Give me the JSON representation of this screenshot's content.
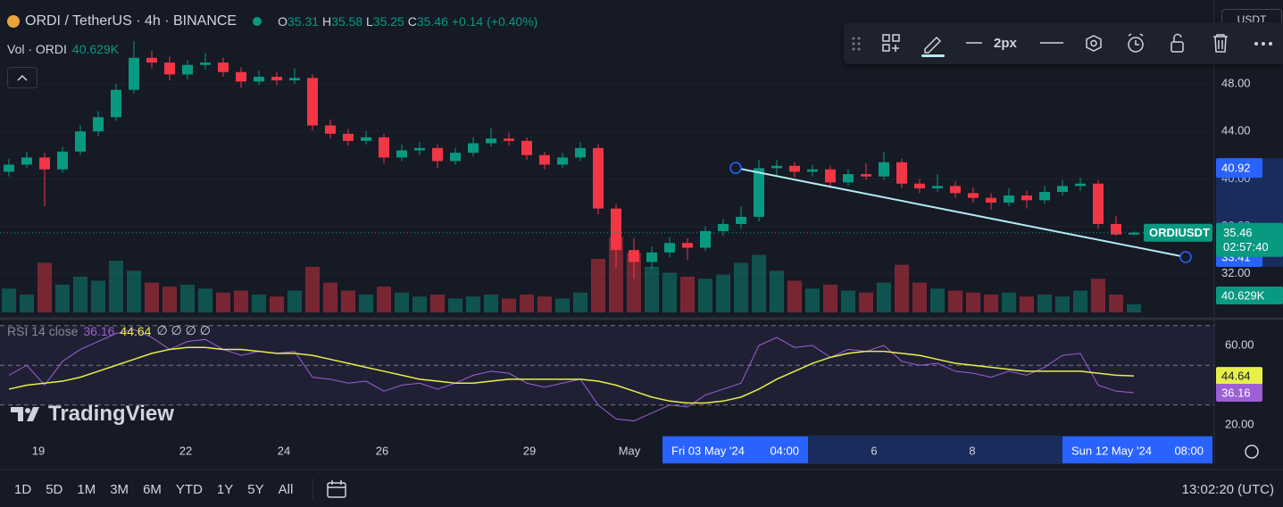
{
  "chart_data": {
    "type": "candlestick",
    "title": "ORDI / TetherUS · 4h · BINANCE",
    "ohlc_labels": [
      "O",
      "H",
      "L",
      "C"
    ],
    "change": "+0.14 (+0.40%)",
    "candles": [
      [
        40.6,
        41.7,
        40.2,
        41.2
      ],
      [
        41.2,
        42.3,
        40.9,
        41.8
      ],
      [
        41.8,
        42.2,
        37.7,
        40.8
      ],
      [
        40.8,
        42.7,
        40.5,
        42.3
      ],
      [
        42.3,
        44.5,
        42.0,
        44.0
      ],
      [
        44.0,
        45.7,
        43.6,
        45.2
      ],
      [
        45.2,
        48.0,
        44.9,
        47.5
      ],
      [
        47.5,
        51.6,
        47.2,
        50.2
      ],
      [
        50.2,
        50.8,
        49.3,
        49.8
      ],
      [
        49.8,
        50.3,
        48.3,
        48.8
      ],
      [
        48.8,
        50.0,
        48.4,
        49.6
      ],
      [
        49.6,
        50.6,
        49.2,
        49.8
      ],
      [
        49.8,
        50.2,
        48.6,
        49.0
      ],
      [
        49.0,
        49.4,
        47.7,
        48.2
      ],
      [
        48.2,
        49.1,
        47.9,
        48.6
      ],
      [
        48.6,
        49.0,
        47.9,
        48.3
      ],
      [
        48.3,
        49.3,
        48.0,
        48.5
      ],
      [
        48.5,
        48.8,
        44.1,
        44.5
      ],
      [
        44.5,
        45.0,
        43.4,
        43.8
      ],
      [
        43.8,
        44.2,
        42.8,
        43.2
      ],
      [
        43.2,
        44.0,
        42.9,
        43.5
      ],
      [
        43.5,
        43.8,
        41.3,
        41.8
      ],
      [
        41.8,
        42.9,
        41.5,
        42.4
      ],
      [
        42.4,
        43.1,
        42.0,
        42.6
      ],
      [
        42.6,
        42.9,
        40.9,
        41.5
      ],
      [
        41.5,
        42.6,
        41.2,
        42.2
      ],
      [
        42.2,
        43.5,
        41.9,
        43.0
      ],
      [
        43.0,
        44.3,
        42.7,
        43.4
      ],
      [
        43.4,
        43.9,
        42.8,
        43.2
      ],
      [
        43.2,
        43.5,
        41.6,
        42.0
      ],
      [
        42.0,
        42.3,
        40.8,
        41.2
      ],
      [
        41.2,
        42.2,
        40.9,
        41.8
      ],
      [
        41.8,
        43.1,
        41.5,
        42.6
      ],
      [
        42.6,
        42.9,
        37.0,
        37.5
      ],
      [
        37.5,
        37.9,
        32.5,
        34.0
      ],
      [
        34.0,
        35.0,
        31.6,
        33.0
      ],
      [
        33.0,
        34.3,
        32.4,
        33.8
      ],
      [
        33.8,
        35.1,
        33.4,
        34.6
      ],
      [
        34.6,
        35.0,
        33.2,
        34.2
      ],
      [
        34.2,
        36.0,
        33.9,
        35.6
      ],
      [
        35.6,
        36.6,
        35.2,
        36.2
      ],
      [
        36.2,
        37.7,
        35.8,
        36.8
      ],
      [
        36.8,
        41.6,
        36.4,
        40.9
      ],
      [
        40.9,
        41.6,
        40.3,
        41.1
      ],
      [
        41.1,
        41.4,
        40.1,
        40.6
      ],
      [
        40.6,
        41.2,
        40.2,
        40.8
      ],
      [
        40.8,
        41.1,
        39.2,
        39.7
      ],
      [
        39.7,
        40.8,
        39.4,
        40.4
      ],
      [
        40.4,
        41.3,
        39.9,
        40.2
      ],
      [
        40.2,
        42.3,
        39.9,
        41.4
      ],
      [
        41.4,
        41.7,
        39.2,
        39.6
      ],
      [
        39.6,
        40.0,
        38.8,
        39.2
      ],
      [
        39.2,
        40.4,
        38.9,
        39.4
      ],
      [
        39.4,
        39.8,
        38.4,
        38.8
      ],
      [
        38.8,
        39.3,
        38.0,
        38.4
      ],
      [
        38.4,
        38.8,
        37.4,
        38.0
      ],
      [
        38.0,
        39.2,
        37.7,
        38.6
      ],
      [
        38.6,
        39.0,
        37.5,
        38.2
      ],
      [
        38.2,
        39.4,
        37.9,
        38.9
      ],
      [
        38.9,
        39.9,
        38.6,
        39.4
      ],
      [
        39.4,
        40.1,
        39.0,
        39.6
      ],
      [
        39.6,
        39.9,
        35.8,
        36.2
      ],
      [
        36.2,
        36.9,
        35.2,
        35.31
      ],
      [
        35.31,
        35.58,
        35.25,
        35.46
      ]
    ],
    "up_color": "#089981",
    "down_color": "#f23645",
    "ylim": [
      28.75,
      55.07
    ],
    "yticks": [
      {
        "value": 48,
        "label": "48.00"
      },
      {
        "value": 44,
        "label": "44.00"
      },
      {
        "value": 40,
        "label": "40.00"
      },
      {
        "value": 36,
        "label": "36.00"
      },
      {
        "value": 32,
        "label": "32.00"
      }
    ],
    "symbol_label": "ORDIUSDT",
    "countdown": "02:57:40",
    "x_labels": [
      "19",
      "22",
      "24",
      "26",
      "29",
      "May",
      "6",
      "8"
    ],
    "start_label": {
      "date": "Fri 03 May '24",
      "time": "04:00"
    },
    "end_label": {
      "date": "Sun 12 May '24",
      "time": "08:00"
    },
    "trend_line": {
      "values": [
        40.92,
        33.41
      ],
      "color": "#b2ebf2"
    },
    "volume": {
      "title": "Vol · ORDI",
      "values": [
        120000,
        90000,
        250000,
        140000,
        180000,
        160000,
        260000,
        210000,
        150000,
        130000,
        140000,
        120000,
        100000,
        110000,
        90000,
        80000,
        110000,
        230000,
        150000,
        110000,
        90000,
        130000,
        100000,
        80000,
        90000,
        70000,
        80000,
        90000,
        70000,
        90000,
        80000,
        70000,
        100000,
        270000,
        380000,
        300000,
        230000,
        200000,
        180000,
        170000,
        190000,
        250000,
        290000,
        210000,
        160000,
        120000,
        140000,
        110000,
        100000,
        150000,
        240000,
        150000,
        120000,
        110000,
        100000,
        90000,
        100000,
        80000,
        90000,
        80000,
        110000,
        170000,
        90000,
        40629
      ],
      "last_label": "40.629K",
      "vlim": [
        0,
        450000
      ]
    },
    "rsi": {
      "title": "RSI 14 close",
      "extra": "∅ ∅ ∅ ∅",
      "color": "#9c5fd6",
      "ma_color": "#e6f048",
      "values": [
        45,
        50,
        40,
        52,
        58,
        62,
        66,
        68,
        64,
        58,
        62,
        63,
        58,
        55,
        57,
        56,
        57,
        44,
        43,
        41,
        42,
        37,
        40,
        41,
        38,
        41,
        45,
        47,
        46,
        41,
        39,
        41,
        43,
        30,
        23,
        22,
        26,
        30,
        29,
        35,
        38,
        41,
        60,
        64,
        59,
        60,
        54,
        58,
        57,
        60,
        52,
        50,
        51,
        47,
        46,
        44,
        47,
        45,
        49,
        55,
        56,
        40,
        37,
        36.16
      ],
      "ma": [
        38,
        40,
        41,
        42,
        44,
        47,
        50,
        53,
        56,
        58,
        59,
        59,
        58,
        58,
        57,
        56,
        56,
        55,
        53,
        51,
        49,
        47,
        45,
        43,
        42,
        41,
        41,
        42,
        43,
        43,
        43,
        43,
        43,
        42,
        40,
        37,
        34,
        32,
        31,
        31,
        32,
        34,
        38,
        43,
        47,
        51,
        54,
        56,
        57,
        57,
        56,
        55,
        53,
        51,
        50,
        49,
        48,
        47,
        47,
        47,
        47,
        46,
        45,
        44.64
      ],
      "ylim": [
        15.96,
        72.13
      ],
      "yticks": [
        {
          "value": 60,
          "label": "60.00"
        },
        {
          "value": 20,
          "label": "20.00"
        }
      ],
      "bands": [
        70,
        50,
        30
      ]
    }
  },
  "toolbar": {
    "width_label": "2px"
  },
  "currency": "USDT",
  "brand": "TradingView",
  "timeframes": [
    "1D",
    "5D",
    "1M",
    "3M",
    "6M",
    "YTD",
    "1Y",
    "5Y",
    "All"
  ],
  "clock": "13:02:20 (UTC)"
}
